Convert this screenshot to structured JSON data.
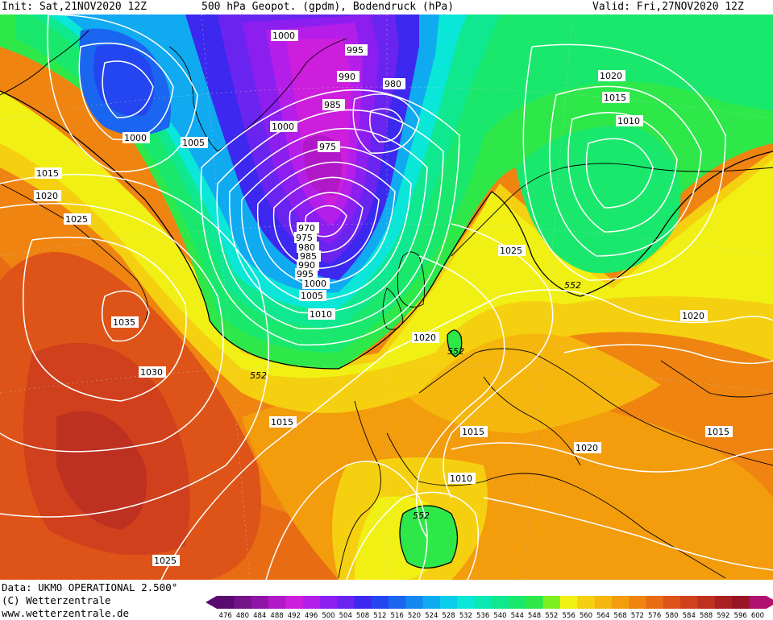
{
  "header": {
    "init": "Init: Sat,21NOV2020 12Z",
    "title": "500 hPa Geopot. (gpdm), Bodendruck (hPa)",
    "valid": "Valid: Fri,27NOV2020 12Z"
  },
  "footer": {
    "data_line": "Data: UKMO OPERATIONAL 2.500°",
    "copyright": "(C) Wetterzentrale",
    "url": "www.wetterzentrale.de"
  },
  "legend": {
    "values": [
      "476",
      "480",
      "484",
      "488",
      "492",
      "496",
      "500",
      "504",
      "508",
      "512",
      "516",
      "520",
      "524",
      "528",
      "532",
      "536",
      "540",
      "544",
      "548",
      "552",
      "556",
      "560",
      "564",
      "568",
      "572",
      "576",
      "580",
      "584",
      "588",
      "592",
      "596",
      "600"
    ],
    "colors": [
      "#5a0a6e",
      "#74128a",
      "#9014a8",
      "#b018c8",
      "#cc1edc",
      "#b41ee8",
      "#8c1ef0",
      "#6a24f0",
      "#3c28ee",
      "#2446f0",
      "#1a66f0",
      "#1488f0",
      "#10aaf0",
      "#0cccec",
      "#0ae6d8",
      "#0ae8b4",
      "#10e890",
      "#1ae86c",
      "#2ee84a",
      "#7cf01e",
      "#f0f014",
      "#f5d010",
      "#f5b60e",
      "#f39c0c",
      "#ef8410",
      "#e86c14",
      "#de5418",
      "#d0401c",
      "#be3020",
      "#aa2022",
      "#981424",
      "#b0106e"
    ]
  },
  "isobar_labels": [
    "1000",
    "995",
    "990",
    "980",
    "985",
    "1000",
    "975",
    "970",
    "975",
    "980",
    "985",
    "990",
    "995",
    "1000",
    "1005",
    "1010",
    "1000",
    "1005",
    "1015",
    "1020",
    "1025",
    "1035",
    "1030",
    "1015",
    "1025",
    "1020",
    "1015",
    "1010",
    "1020",
    "1015",
    "1010",
    "1025",
    "1020",
    "1020",
    "1015"
  ],
  "contour_labels": [
    "552",
    "552",
    "552",
    "552"
  ]
}
